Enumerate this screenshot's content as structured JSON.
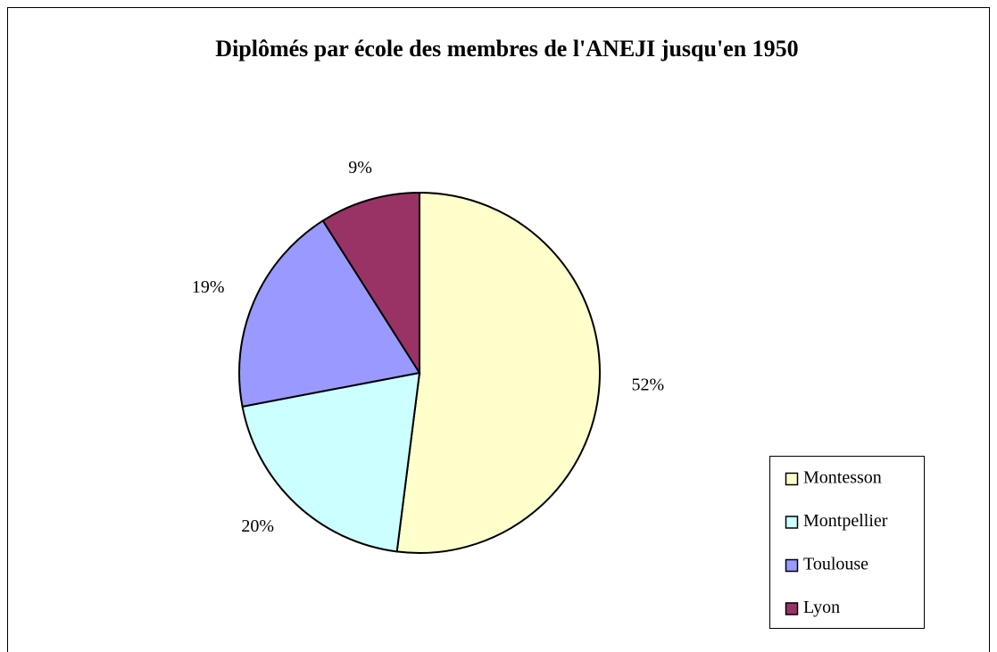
{
  "chart_data": {
    "type": "pie",
    "title": "Diplômés par école des membres de l'ANEJI jusqu'en 1950",
    "categories": [
      "Montesson",
      "Montpellier",
      "Toulouse",
      "Lyon"
    ],
    "values": [
      52,
      20,
      19,
      9
    ],
    "value_labels": [
      "52%",
      "20%",
      "19%",
      "9%"
    ],
    "colors": [
      "#ffffcc",
      "#ccffff",
      "#9999ff",
      "#993366"
    ],
    "legend": "right"
  }
}
